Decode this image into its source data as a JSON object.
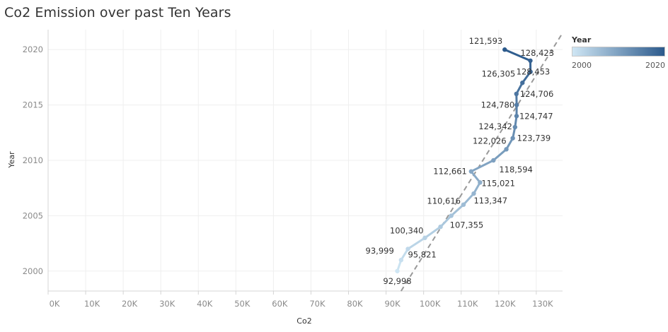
{
  "title": "Co2 Emission over past Ten Years",
  "legend": {
    "title": "Year",
    "min_label": "2000",
    "max_label": "2020",
    "color_low": "#cfe6f4",
    "color_high": "#2c5a8c"
  },
  "chart_data": {
    "type": "line",
    "title": "Co2 Emission over past Ten Years",
    "xlabel": "Co2",
    "ylabel": "Year",
    "xlim": [
      0,
      137000
    ],
    "ylim": [
      1998.2,
      2021.8
    ],
    "x_ticks": [
      "0K",
      "10K",
      "20K",
      "30K",
      "40K",
      "50K",
      "60K",
      "70K",
      "80K",
      "90K",
      "100K",
      "110K",
      "120K",
      "130K"
    ],
    "y_ticks": [
      "2000",
      "2005",
      "2010",
      "2015",
      "2020"
    ],
    "grid": true,
    "legend_position": "top-right",
    "trend_line": {
      "style": "dashed",
      "color": "#999999",
      "from": [
        94000,
        1998.2
      ],
      "to": [
        137000,
        2021.5
      ]
    },
    "points": [
      {
        "year": 2000,
        "co2": 92998,
        "label": "92,998"
      },
      {
        "year": 2001,
        "co2": 93999,
        "label": "93,999"
      },
      {
        "year": 2002,
        "co2": 95821,
        "label": "95,821"
      },
      {
        "year": 2003,
        "co2": 100340,
        "label": "100,340"
      },
      {
        "year": 2004,
        "co2": 104500,
        "label": ""
      },
      {
        "year": 2005,
        "co2": 107355,
        "label": "107,355"
      },
      {
        "year": 2006,
        "co2": 110616,
        "label": "110,616"
      },
      {
        "year": 2007,
        "co2": 113347,
        "label": "113,347"
      },
      {
        "year": 2008,
        "co2": 115021,
        "label": "115,021"
      },
      {
        "year": 2009,
        "co2": 112661,
        "label": "112,661"
      },
      {
        "year": 2010,
        "co2": 118594,
        "label": "118,594"
      },
      {
        "year": 2011,
        "co2": 122026,
        "label": "122,026"
      },
      {
        "year": 2012,
        "co2": 123739,
        "label": "123,739"
      },
      {
        "year": 2013,
        "co2": 124342,
        "label": "124,342"
      },
      {
        "year": 2014,
        "co2": 124747,
        "label": "124,747"
      },
      {
        "year": 2015,
        "co2": 124780,
        "label": "124,780"
      },
      {
        "year": 2016,
        "co2": 124706,
        "label": "124,706"
      },
      {
        "year": 2017,
        "co2": 126305,
        "label": "126,305"
      },
      {
        "year": 2018,
        "co2": 128453,
        "label": "128,453"
      },
      {
        "year": 2019,
        "co2": 128423,
        "label": "128,423"
      },
      {
        "year": 2020,
        "co2": 121593,
        "label": "121,593"
      }
    ]
  }
}
